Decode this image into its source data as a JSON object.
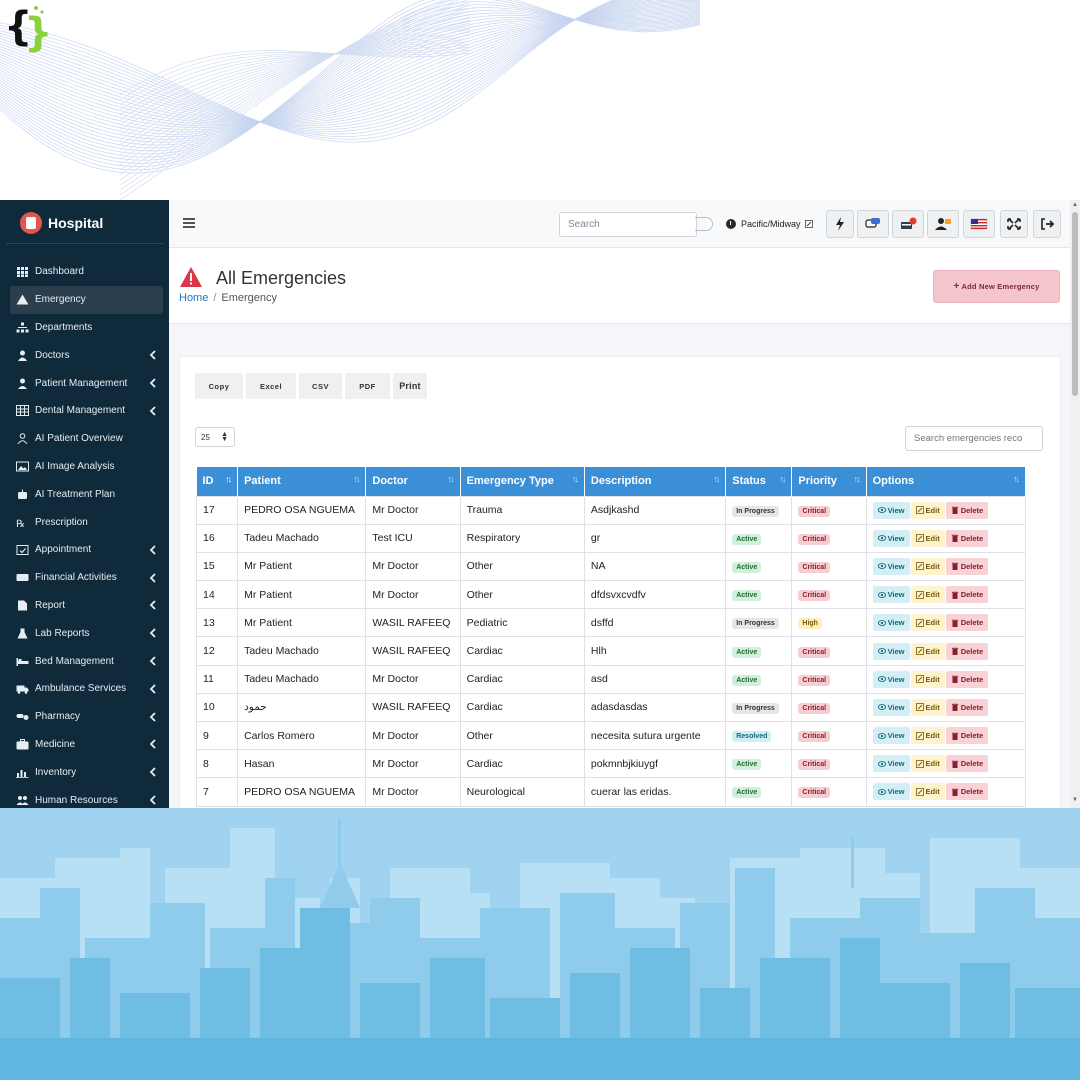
{
  "app": {
    "brand": "Hospital",
    "page_title": "All Emergencies",
    "breadcrumb": {
      "home": "Home",
      "current": "Emergency"
    }
  },
  "sidebar": {
    "items": [
      {
        "label": "Dashboard",
        "icon": "grid-icon",
        "chevron": false
      },
      {
        "label": "Emergency",
        "icon": "warning-icon",
        "chevron": false,
        "active": true
      },
      {
        "label": "Departments",
        "icon": "sitemap-icon",
        "chevron": false
      },
      {
        "label": "Doctors",
        "icon": "doctor-icon",
        "chevron": true
      },
      {
        "label": "Patient Management",
        "icon": "user-icon",
        "chevron": true
      },
      {
        "label": "Dental Management",
        "icon": "table-icon",
        "chevron": true
      },
      {
        "label": "AI Patient Overview",
        "icon": "person-outline-icon",
        "chevron": false
      },
      {
        "label": "AI Image Analysis",
        "icon": "image-icon",
        "chevron": false
      },
      {
        "label": "AI Treatment Plan",
        "icon": "robot-icon",
        "chevron": false
      },
      {
        "label": "Prescription",
        "icon": "rx-icon",
        "chevron": false
      },
      {
        "label": "Appointment",
        "icon": "calendar-check-icon",
        "chevron": true
      },
      {
        "label": "Financial Activities",
        "icon": "money-icon",
        "chevron": true
      },
      {
        "label": "Report",
        "icon": "file-icon",
        "chevron": true
      },
      {
        "label": "Lab Reports",
        "icon": "flask-icon",
        "chevron": true
      },
      {
        "label": "Bed Management",
        "icon": "bed-icon",
        "chevron": true
      },
      {
        "label": "Ambulance Services",
        "icon": "ambulance-icon",
        "chevron": true
      },
      {
        "label": "Pharmacy",
        "icon": "pills-icon",
        "chevron": true
      },
      {
        "label": "Medicine",
        "icon": "medkit-icon",
        "chevron": true
      },
      {
        "label": "Inventory",
        "icon": "chart-icon",
        "chevron": true
      },
      {
        "label": "Human Resources",
        "icon": "users-icon",
        "chevron": true
      }
    ]
  },
  "topbar": {
    "search_placeholder": "Search",
    "timezone": "Pacific/Midway",
    "buttons": [
      "bolt-icon",
      "chat-icon",
      "notification-icon",
      "user-alert-icon",
      "us-flag-icon",
      "fullscreen-icon",
      "logout-icon"
    ]
  },
  "toolbar": {
    "add_label": "Add New Emergency",
    "exports": [
      "Copy",
      "Excel",
      "CSV",
      "PDF",
      "Print"
    ],
    "page_length": "25",
    "table_search_placeholder": "Search emergencies reco"
  },
  "table": {
    "columns": [
      "ID",
      "Patient",
      "Doctor",
      "Emergency Type",
      "Description",
      "Status",
      "Priority",
      "Options"
    ],
    "options": {
      "view": "View",
      "edit": "Edit",
      "delete": "Delete"
    },
    "rows": [
      {
        "id": "17",
        "patient": "PEDRO OSA NGUEMA",
        "doctor": "Mr Doctor",
        "type": "Trauma",
        "description": "Asdjkashd",
        "status": "In Progress",
        "priority": "Critical"
      },
      {
        "id": "16",
        "patient": "Tadeu Machado",
        "doctor": "Test ICU",
        "type": "Respiratory",
        "description": "gr",
        "status": "Active",
        "priority": "Critical"
      },
      {
        "id": "15",
        "patient": "Mr Patient",
        "doctor": "Mr Doctor",
        "type": "Other",
        "description": "NA",
        "status": "Active",
        "priority": "Critical"
      },
      {
        "id": "14",
        "patient": "Mr Patient",
        "doctor": "Mr Doctor",
        "type": "Other",
        "description": "dfdsvxcvdfv",
        "status": "Active",
        "priority": "Critical"
      },
      {
        "id": "13",
        "patient": "Mr Patient",
        "doctor": "WASIL RAFEEQ",
        "type": "Pediatric",
        "description": "dsffd",
        "status": "In Progress",
        "priority": "High"
      },
      {
        "id": "12",
        "patient": "Tadeu Machado",
        "doctor": "WASIL RAFEEQ",
        "type": "Cardiac",
        "description": "Hlh",
        "status": "Active",
        "priority": "Critical"
      },
      {
        "id": "11",
        "patient": "Tadeu Machado",
        "doctor": "Mr Doctor",
        "type": "Cardiac",
        "description": "asd",
        "status": "Active",
        "priority": "Critical"
      },
      {
        "id": "10",
        "patient": "حمود",
        "doctor": "WASIL RAFEEQ",
        "type": "Cardiac",
        "description": "adasdasdas",
        "status": "In Progress",
        "priority": "Critical"
      },
      {
        "id": "9",
        "patient": "Carlos Romero",
        "doctor": "Mr Doctor",
        "type": "Other",
        "description": "necesita sutura urgente",
        "status": "Resolved",
        "priority": "Critical"
      },
      {
        "id": "8",
        "patient": "Hasan",
        "doctor": "Mr Doctor",
        "type": "Cardiac",
        "description": "pokmnbjkiuygf",
        "status": "Active",
        "priority": "Critical"
      },
      {
        "id": "7",
        "patient": "PEDRO OSA NGUEMA",
        "doctor": "Mr Doctor",
        "type": "Neurological",
        "description": "cuerar las eridas.",
        "status": "Active",
        "priority": "Critical"
      }
    ]
  },
  "colors": {
    "sidebar_bg": "#0f2a3a",
    "table_header": "#3a8fd6",
    "accent_red": "#e2564f",
    "city_sky": "#9fd3ef"
  }
}
